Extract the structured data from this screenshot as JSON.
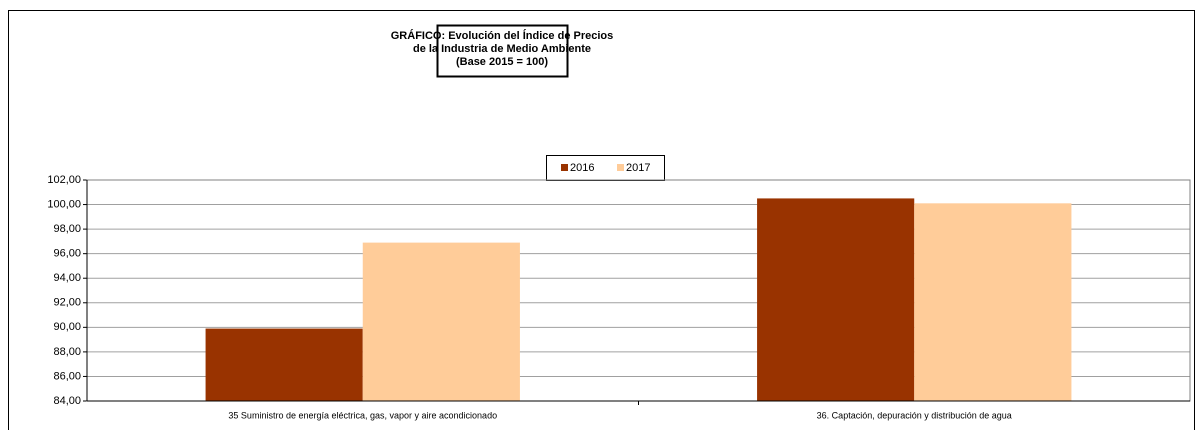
{
  "chart_data": {
    "type": "bar",
    "title": [
      "GRÁFICO: Evolución del Índice de Precios",
      "de la Industria de Medio Ambiente",
      "(Base 2015 = 100)"
    ],
    "categories": [
      "35 Suministro de energía eléctrica, gas, vapor y aire acondicionado",
      "36. Captación, depuración y distribución de agua"
    ],
    "series": [
      {
        "name": "2016",
        "color": "#993300",
        "values": [
          89.9,
          100.5
        ]
      },
      {
        "name": "2017",
        "color": "#ffcc99",
        "values": [
          96.9,
          100.1
        ]
      }
    ],
    "ylim": [
      84,
      102
    ],
    "yticks": [
      {
        "value": 84,
        "label": "84,00"
      },
      {
        "value": 86,
        "label": "86,00"
      },
      {
        "value": 88,
        "label": "88,00"
      },
      {
        "value": 90,
        "label": "90,00"
      },
      {
        "value": 92,
        "label": "92,00"
      },
      {
        "value": 94,
        "label": "94,00"
      },
      {
        "value": 96,
        "label": "96,00"
      },
      {
        "value": 98,
        "label": "98,00"
      },
      {
        "value": 100,
        "label": "100,00"
      },
      {
        "value": 102,
        "label": "102,00"
      }
    ],
    "grid": true,
    "legend": "top"
  }
}
